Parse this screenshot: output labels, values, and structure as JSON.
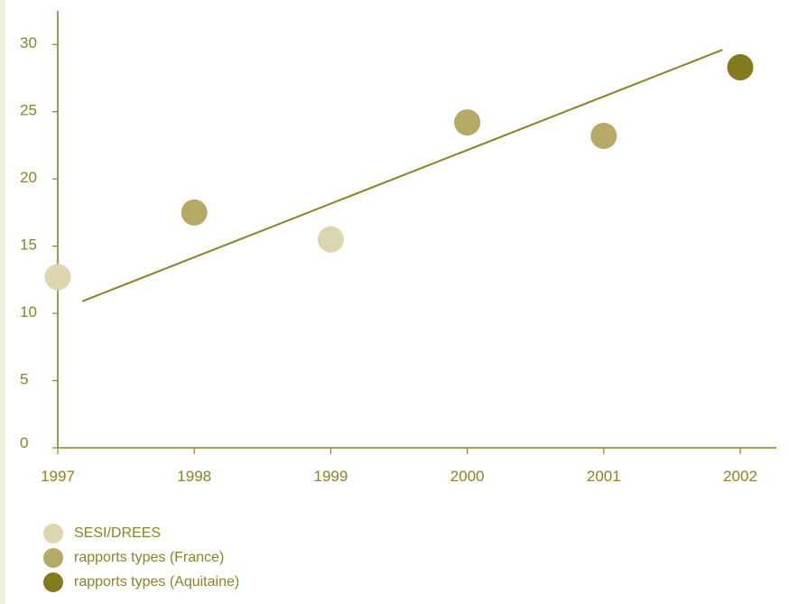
{
  "chart_data": {
    "type": "scatter",
    "x_categories": [
      "1997",
      "1998",
      "1999",
      "2000",
      "2001",
      "2002"
    ],
    "y_ticks": [
      0,
      5,
      10,
      15,
      20,
      25,
      30
    ],
    "ylim": [
      0,
      32.5
    ],
    "grid": false,
    "legend_position": "bottom-left",
    "series": [
      {
        "name": "SESI/DREES",
        "color": "#dcd5ad",
        "points": [
          {
            "x": "1997",
            "y": 12.7
          },
          {
            "x": "1999",
            "y": 15.5
          }
        ]
      },
      {
        "name": "rapports types (France)",
        "color": "#b4aa65",
        "points": [
          {
            "x": "1998",
            "y": 17.5
          },
          {
            "x": "2000",
            "y": 24.2
          },
          {
            "x": "2001",
            "y": 23.2
          }
        ]
      },
      {
        "name": "rapports types (Aquitaine)",
        "color": "#847a1e",
        "points": [
          {
            "x": "2002",
            "y": 28.3
          }
        ]
      }
    ],
    "trend_line": {
      "color": "#8c8226",
      "from": {
        "x": 1997.18,
        "y": 10.9
      },
      "to": {
        "x": 2001.87,
        "y": 29.6
      }
    },
    "axis_color": "#8c8226",
    "text_color": "#8c8226"
  }
}
